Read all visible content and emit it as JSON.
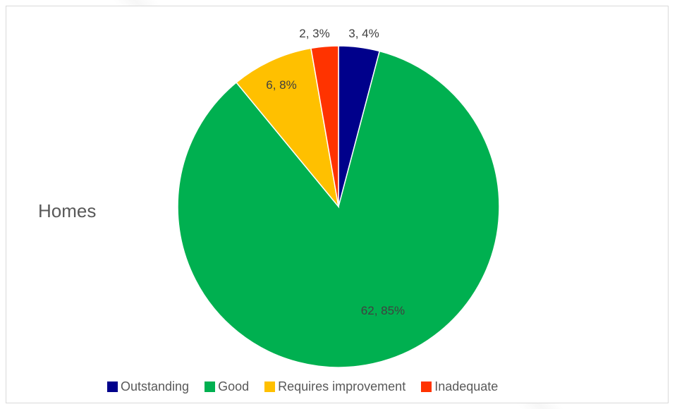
{
  "chart_data": {
    "type": "pie",
    "title": "Homes",
    "slices": [
      {
        "name": "Outstanding",
        "value": 3,
        "label": "3, 4%",
        "color": "#00008b"
      },
      {
        "name": "Good",
        "value": 62,
        "label": "62, 85%",
        "color": "#00b050"
      },
      {
        "name": "Requires improvement",
        "value": 6,
        "label": "6, 8%",
        "color": "#ffc000"
      },
      {
        "name": "Inadequate",
        "value": 2,
        "label": "2, 3%",
        "color": "#ff3300"
      }
    ],
    "legend_position": "bottom"
  }
}
